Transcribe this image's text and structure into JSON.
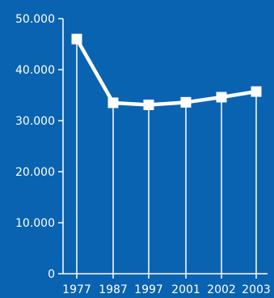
{
  "colors": {
    "background": "#0a63b1",
    "foreground": "#ffffff"
  },
  "chart_data": {
    "type": "line",
    "title": "",
    "xlabel": "",
    "ylabel": "",
    "categories": [
      "1977",
      "1987",
      "1997",
      "2001",
      "2002",
      "2003"
    ],
    "series": [
      {
        "values": [
          46000,
          33500,
          33100,
          33600,
          34600,
          35700
        ]
      }
    ],
    "ylim": [
      0,
      50000
    ],
    "y_ticks": [
      0,
      10000,
      20000,
      30000,
      40000,
      50000
    ],
    "y_tick_labels": [
      "0",
      "10.000",
      "20.000",
      "30.000",
      "40.000",
      "50.000"
    ],
    "grid": false,
    "legend": "none",
    "marker": "square"
  }
}
